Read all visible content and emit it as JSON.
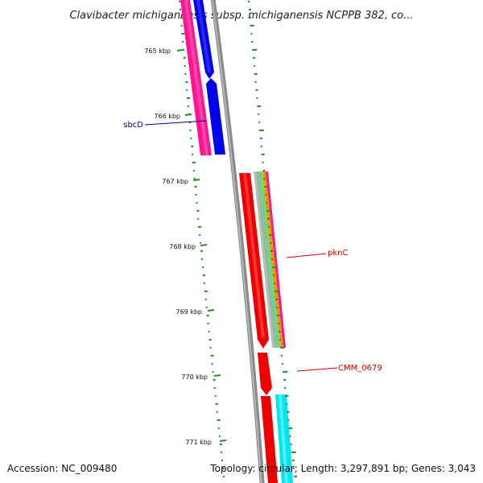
{
  "title": "Clavibacter michiganensis subsp. michiganensis NCPPB 382, co...",
  "footer": {
    "accession": "Accession: NC_009480",
    "summary": "Topology: circular; Length: 3,297,891 bp; Genes: 3,043"
  },
  "colors": {
    "backbone": "#8a8a8a",
    "tick": "#228b22",
    "tick_label": "#111111",
    "label_blue": "#00008b",
    "label_red": "#cc0000"
  },
  "scale_ticks": [
    {
      "label": "765 kbp"
    },
    {
      "label": "766 kbp"
    },
    {
      "label": "767 kbp"
    },
    {
      "label": "768 kbp"
    },
    {
      "label": "769 kbp"
    },
    {
      "label": "770 kbp"
    },
    {
      "label": "771 kbp"
    }
  ],
  "gene_labels": [
    {
      "name": "sbcD",
      "color": "#00008b"
    },
    {
      "name": "pknC",
      "color": "#cc0000"
    },
    {
      "name": "CMM_0679",
      "color": "#cc0000"
    }
  ]
}
